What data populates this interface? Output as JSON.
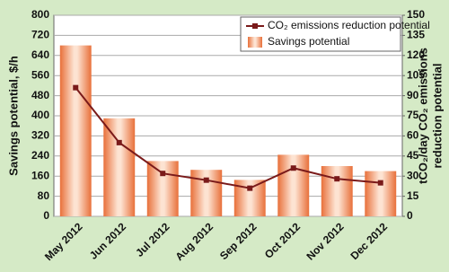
{
  "chart_data": {
    "type": "bar",
    "categories": [
      "May 2012",
      "Jun 2012",
      "Jul 2012",
      "Aug 2012",
      "Sep 2012",
      "Oct 2012",
      "Nov 2012",
      "Dec 2012"
    ],
    "ylabel": "Savings potential, $/h",
    "y2label": [
      "tCO₂/day CO₂ emissions",
      "reduction potential"
    ],
    "series": [
      {
        "name": "CO₂ emissions reduction potential",
        "type": "line",
        "axis": "y2",
        "color": "#7a1a1a",
        "values": [
          96,
          55,
          32,
          27,
          21,
          36,
          28,
          25
        ]
      },
      {
        "name": "Savings potential",
        "type": "bar",
        "color": "#e8703a",
        "values": [
          680,
          390,
          220,
          185,
          145,
          245,
          200,
          180
        ]
      }
    ],
    "ylim": [
      0,
      800
    ],
    "yticks": [
      0,
      80,
      160,
      240,
      320,
      400,
      480,
      560,
      640,
      720,
      800
    ],
    "y2lim": [
      0,
      150
    ],
    "y2ticks": [
      0,
      15,
      30,
      45,
      60,
      75,
      90,
      105,
      120,
      135,
      150
    ],
    "grid": true,
    "legend": "upper right"
  }
}
